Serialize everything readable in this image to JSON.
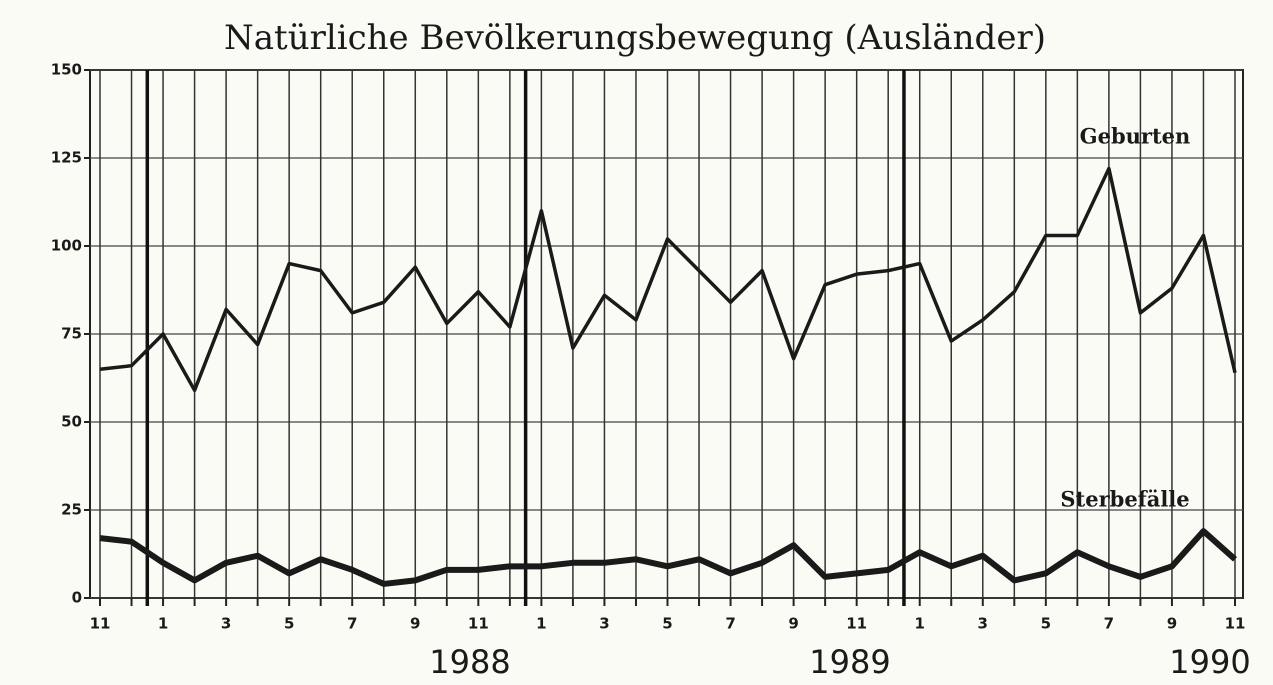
{
  "chart_data": {
    "type": "line",
    "title": "Natürliche Bevölkerungsbewegung (Ausländer)",
    "categories": [
      "11",
      null,
      "1",
      null,
      "3",
      null,
      "5",
      null,
      "7",
      null,
      "9",
      null,
      "11",
      null,
      "1",
      null,
      "3",
      null,
      "5",
      null,
      "7",
      null,
      "9",
      null,
      "11",
      null,
      "1",
      null,
      "3",
      null,
      "5",
      null,
      "7",
      null,
      "9",
      null,
      "11"
    ],
    "year_labels": [
      "1988",
      "1989",
      "1990"
    ],
    "series": [
      {
        "name": "Geburten",
        "color": "#1a1a1a",
        "values": [
          65,
          66,
          75,
          59,
          82,
          72,
          95,
          93,
          81,
          84,
          94,
          78,
          87,
          77,
          110,
          71,
          86,
          79,
          102,
          93,
          84,
          93,
          68,
          89,
          92,
          93,
          95,
          73,
          79,
          87,
          103,
          103,
          122,
          81,
          88,
          103,
          64
        ]
      },
      {
        "name": "Sterbefälle",
        "color": "#1a1a1a",
        "values": [
          17,
          16,
          10,
          5,
          10,
          12,
          7,
          11,
          8,
          4,
          5,
          8,
          8,
          9,
          9,
          10,
          10,
          11,
          9,
          11,
          7,
          10,
          15,
          6,
          7,
          8,
          13,
          9,
          12,
          5,
          7,
          13,
          9,
          6,
          9,
          19,
          11
        ]
      }
    ],
    "ylim": [
      0,
      150
    ],
    "yticks": [
      0,
      25,
      50,
      75,
      100,
      125,
      150
    ],
    "grid": true
  }
}
